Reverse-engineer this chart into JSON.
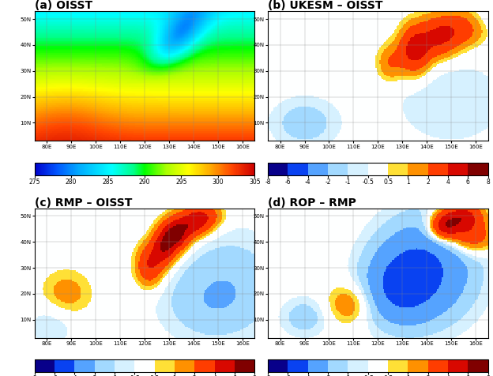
{
  "title_a": "(a) OISST",
  "title_b": "(b) UKESM – OISST",
  "title_c": "(c) RMP – OISST",
  "title_d": "(d) ROP – RMP",
  "lon_range": [
    75,
    165
  ],
  "lat_range": [
    3,
    53
  ],
  "lon_ticks": [
    80,
    90,
    100,
    110,
    120,
    130,
    140,
    150,
    160
  ],
  "lat_ticks": [
    10,
    20,
    30,
    40,
    50
  ],
  "sst_vmin": 275,
  "sst_vmax": 305,
  "sst_ticks": [
    275,
    280,
    285,
    290,
    295,
    300,
    305
  ],
  "diff_levels": [
    -8,
    -6,
    -4,
    -2,
    -1,
    -0.5,
    0.5,
    1,
    2,
    4,
    6,
    8
  ],
  "diff_tick_labels": [
    "-8",
    "-6",
    "-4",
    "-2",
    "-1",
    "-0.5",
    "0.5",
    "1",
    "2",
    "4",
    "6",
    "8"
  ],
  "land_color": "#f5f5f0",
  "ocean_bg": "#ffffff",
  "title_fontsize": 10,
  "tick_fontsize": 5,
  "cb_tick_fontsize": 5.5
}
